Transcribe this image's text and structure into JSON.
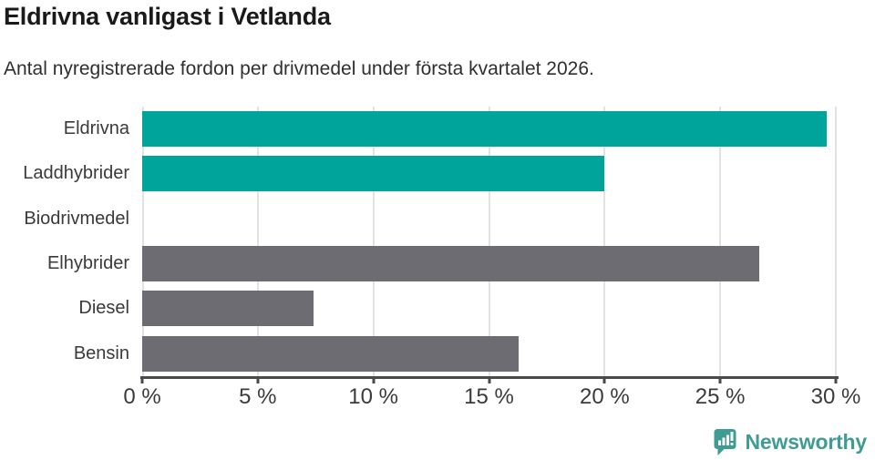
{
  "chart": {
    "title": "Eldrivna vanligast i Vetlanda",
    "subtitle": "Antal nyregistrerade fordon per drivmedel under första kvartalet 2026."
  },
  "chart_data": {
    "type": "bar",
    "orientation": "horizontal",
    "title": "Eldrivna vanligast i Vetlanda",
    "subtitle": "Antal nyregistrerade fordon per drivmedel under första kvartalet 2026.",
    "categories": [
      "Eldrivna",
      "Laddhybrider",
      "Biodrivmedel",
      "Elhybrider",
      "Diesel",
      "Bensin"
    ],
    "values": [
      29.6,
      20.0,
      0,
      26.7,
      7.4,
      16.3
    ],
    "unit": "%",
    "bar_colors": [
      "#00a49a",
      "#00a49a",
      "#00a49a",
      "#6d6c72",
      "#6d6c72",
      "#6d6c72"
    ],
    "xlim": [
      0,
      30
    ],
    "x_ticks": [
      0,
      5,
      10,
      15,
      20,
      25,
      30
    ],
    "x_tick_labels": [
      "0 %",
      "5 %",
      "10 %",
      "15 %",
      "20 %",
      "25 %",
      "30 %"
    ],
    "grid": "vertical light gray, behind bars",
    "legend": "none"
  },
  "colors": {
    "highlight_bar": "#00a49a",
    "default_bar": "#6d6c72",
    "gridline": "#e2e2e2",
    "axis": "#4a4a4a",
    "title_text": "#1a1a1a",
    "body_text": "#3a3a3a",
    "brand_teal": "#3f9c95"
  },
  "footer": {
    "brand": "Newsworthy"
  }
}
